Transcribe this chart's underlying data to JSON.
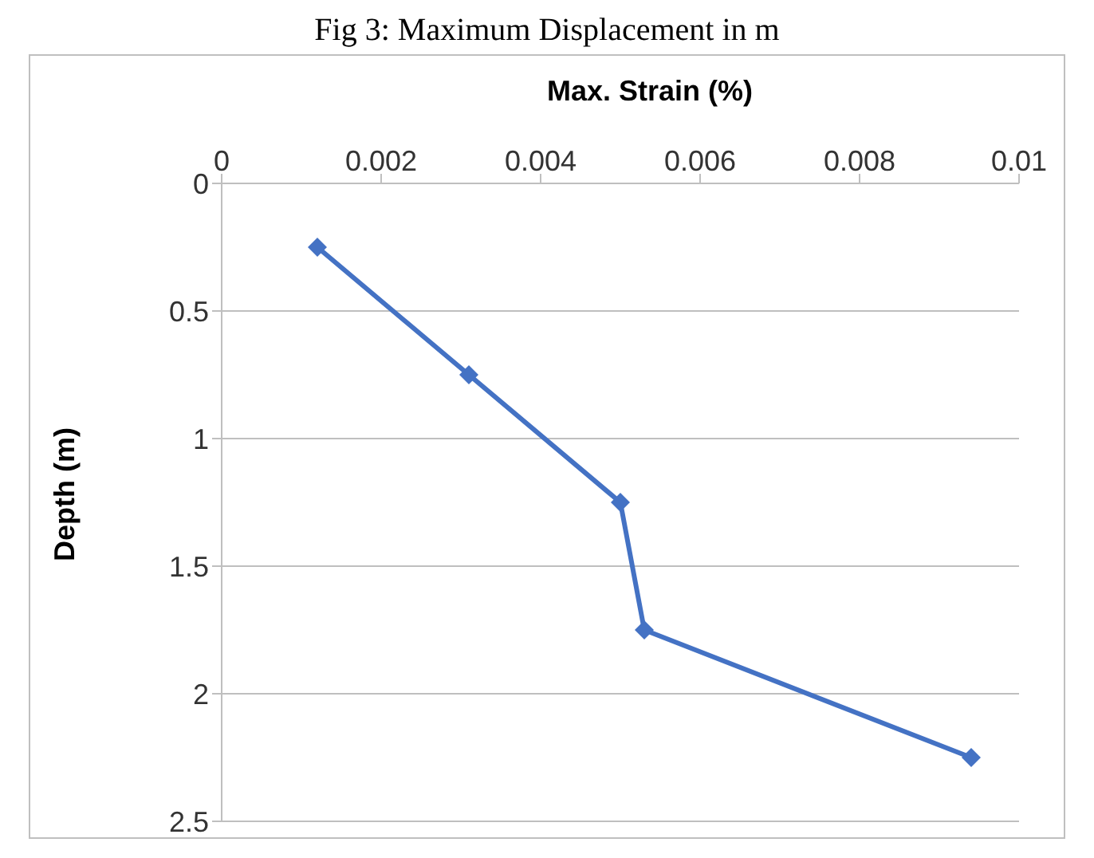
{
  "chart_data": {
    "type": "line",
    "title": "Fig 3: Maximum Displacement in m",
    "xlabel": "Max. Strain (%)",
    "ylabel": "Depth (m)",
    "x": [
      0.0012,
      0.0031,
      0.005,
      0.0053,
      0.0094
    ],
    "series": [
      {
        "color": "#4472c4",
        "values": [
          0.25,
          0.75,
          1.25,
          1.75,
          2.25
        ]
      }
    ],
    "xlim": [
      0,
      0.01
    ],
    "xticks": [
      0,
      0.002,
      0.004,
      0.006,
      0.008,
      0.01
    ],
    "ylim": [
      2.5,
      0
    ],
    "yticks": [
      0,
      0.5,
      1,
      1.5,
      2,
      2.5
    ],
    "grid": "y",
    "marker": "diamond",
    "legend": false
  }
}
